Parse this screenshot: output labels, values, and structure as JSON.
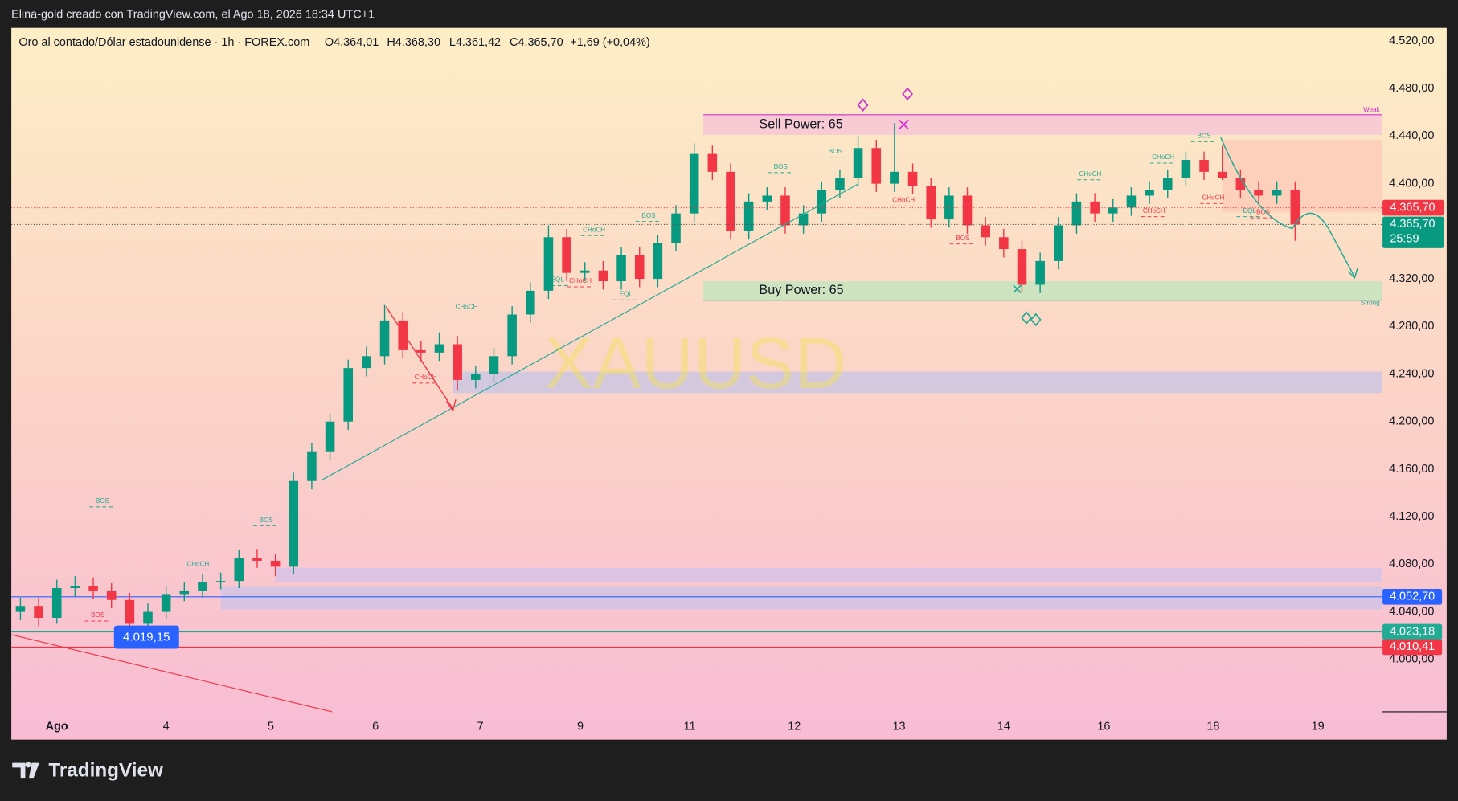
{
  "chart_data": {
    "type": "candlestick",
    "header": "Elina-gold creado con TradingView.com, el Ago 18, 2026 18:34 UTC+1",
    "symbol": "Oro al contado/Dólar estadounidense · 1h · FOREX.com",
    "ohlc_legend": [
      "O4.364,01",
      "H4.368,30",
      "L4.361,42",
      "C4.365,70",
      "+1,69 (+0,04%)"
    ],
    "watermark": "XAUUSD",
    "brand": "TradingView",
    "up_color": "#089981",
    "down_color": "#f23645",
    "xlim": [
      0,
      301
    ],
    "ylim": [
      3956,
      4531
    ],
    "xticks": [
      {
        "value": 10,
        "label": "Ago"
      },
      {
        "value": 34,
        "label": "4"
      },
      {
        "value": 57,
        "label": "5"
      },
      {
        "value": 80,
        "label": "6"
      },
      {
        "value": 103,
        "label": "7"
      },
      {
        "value": 125,
        "label": "9"
      },
      {
        "value": 149,
        "label": "11"
      },
      {
        "value": 172,
        "label": "12"
      },
      {
        "value": 195,
        "label": "13"
      },
      {
        "value": 218,
        "label": "14"
      },
      {
        "value": 240,
        "label": "16"
      },
      {
        "value": 264,
        "label": "18"
      },
      {
        "value": 287,
        "label": "19"
      }
    ],
    "yticks": [
      {
        "value": 4520,
        "label": "4.520,00"
      },
      {
        "value": 4480,
        "label": "4.480,00"
      },
      {
        "value": 4440,
        "label": "4.440,00"
      },
      {
        "value": 4400,
        "label": "4.400,00"
      },
      {
        "value": 4320,
        "label": "4.320,00"
      },
      {
        "value": 4280,
        "label": "4.280,00"
      },
      {
        "value": 4240,
        "label": "4.240,00"
      },
      {
        "value": 4200,
        "label": "4.200,00"
      },
      {
        "value": 4160,
        "label": "4.160,00"
      },
      {
        "value": 4120,
        "label": "4.120,00"
      },
      {
        "value": 4080,
        "label": "4.080,00"
      },
      {
        "value": 4040,
        "label": "4.040,00"
      },
      {
        "value": 4000,
        "label": "4.000,00"
      }
    ],
    "x": [
      2,
      6,
      10,
      14,
      18,
      22,
      26,
      30,
      34,
      38,
      42,
      46,
      50,
      54,
      58,
      62,
      66,
      70,
      74,
      78,
      82,
      86,
      90,
      94,
      98,
      102,
      106,
      110,
      114,
      118,
      122,
      126,
      130,
      134,
      138,
      142,
      146,
      150,
      154,
      158,
      162,
      166,
      170,
      174,
      178,
      182,
      186,
      190,
      194,
      198,
      202,
      206,
      210,
      214,
      218,
      222,
      226,
      230,
      234,
      238,
      242,
      246,
      250,
      254,
      258,
      262,
      266,
      270,
      274,
      278,
      282
    ],
    "ohlc": [
      [
        4040,
        4052,
        4033,
        4045
      ],
      [
        4045,
        4052,
        4028,
        4035
      ],
      [
        4035,
        4067,
        4030,
        4060
      ],
      [
        4060,
        4070,
        4053,
        4062
      ],
      [
        4062,
        4069,
        4051,
        4058
      ],
      [
        4058,
        4064,
        4043,
        4050
      ],
      [
        4050,
        4056,
        4023,
        4030
      ],
      [
        4030,
        4047,
        4024,
        4040
      ],
      [
        4040,
        4062,
        4034,
        4055
      ],
      [
        4055,
        4065,
        4049,
        4058
      ],
      [
        4058,
        4072,
        4052,
        4065
      ],
      [
        4065,
        4073,
        4059,
        4066
      ],
      [
        4066,
        4092,
        4060,
        4085
      ],
      [
        4085,
        4093,
        4077,
        4083
      ],
      [
        4083,
        4089,
        4070,
        4078
      ],
      [
        4078,
        4157,
        4072,
        4150
      ],
      [
        4150,
        4182,
        4143,
        4175
      ],
      [
        4175,
        4207,
        4168,
        4200
      ],
      [
        4200,
        4252,
        4193,
        4245
      ],
      [
        4245,
        4263,
        4238,
        4255
      ],
      [
        4255,
        4298,
        4248,
        4285
      ],
      [
        4285,
        4292,
        4253,
        4260
      ],
      [
        4260,
        4268,
        4250,
        4258
      ],
      [
        4258,
        4275,
        4251,
        4265
      ],
      [
        4265,
        4272,
        4226,
        4235
      ],
      [
        4235,
        4247,
        4228,
        4240
      ],
      [
        4240,
        4262,
        4233,
        4255
      ],
      [
        4255,
        4297,
        4248,
        4290
      ],
      [
        4290,
        4317,
        4283,
        4310
      ],
      [
        4310,
        4365,
        4303,
        4355
      ],
      [
        4355,
        4362,
        4318,
        4325
      ],
      [
        4325,
        4334,
        4318,
        4327
      ],
      [
        4327,
        4335,
        4311,
        4318
      ],
      [
        4318,
        4347,
        4311,
        4340
      ],
      [
        4340,
        4347,
        4313,
        4320
      ],
      [
        4320,
        4357,
        4313,
        4350
      ],
      [
        4350,
        4382,
        4343,
        4375
      ],
      [
        4375,
        4434,
        4368,
        4425
      ],
      [
        4425,
        4432,
        4403,
        4410
      ],
      [
        4410,
        4417,
        4353,
        4360
      ],
      [
        4360,
        4392,
        4353,
        4385
      ],
      [
        4385,
        4397,
        4378,
        4390
      ],
      [
        4390,
        4397,
        4358,
        4365
      ],
      [
        4365,
        4382,
        4358,
        4375
      ],
      [
        4375,
        4402,
        4368,
        4395
      ],
      [
        4395,
        4412,
        4388,
        4405
      ],
      [
        4405,
        4440,
        4398,
        4430
      ],
      [
        4430,
        4437,
        4393,
        4400
      ],
      [
        4400,
        4451,
        4393,
        4410
      ],
      [
        4410,
        4417,
        4391,
        4398
      ],
      [
        4398,
        4405,
        4363,
        4370
      ],
      [
        4370,
        4397,
        4363,
        4390
      ],
      [
        4390,
        4397,
        4358,
        4365
      ],
      [
        4365,
        4372,
        4348,
        4355
      ],
      [
        4355,
        4362,
        4338,
        4345
      ],
      [
        4345,
        4352,
        4308,
        4315
      ],
      [
        4315,
        4342,
        4308,
        4335
      ],
      [
        4335,
        4372,
        4328,
        4365
      ],
      [
        4365,
        4392,
        4358,
        4385
      ],
      [
        4385,
        4392,
        4368,
        4375
      ],
      [
        4375,
        4387,
        4368,
        4380
      ],
      [
        4380,
        4397,
        4373,
        4390
      ],
      [
        4390,
        4402,
        4383,
        4395
      ],
      [
        4395,
        4412,
        4388,
        4405
      ],
      [
        4405,
        4427,
        4398,
        4420
      ],
      [
        4420,
        4427,
        4403,
        4410
      ],
      [
        4410,
        4432,
        4403,
        4405
      ],
      [
        4405,
        4412,
        4388,
        4395
      ],
      [
        4395,
        4402,
        4383,
        4390
      ],
      [
        4390,
        4402,
        4383,
        4395
      ],
      [
        4395,
        4402,
        4352,
        4365.7
      ]
    ],
    "zones": [
      {
        "x0": 152,
        "x1": 301,
        "top": 4458,
        "bottom": 4441,
        "color": "#f7c6d6",
        "label": "Sell Power: 65",
        "edge_label": "Weak",
        "edge_color": "#d02fd0"
      },
      {
        "x0": 152,
        "x1": 301,
        "top": 4318,
        "bottom": 4302,
        "color": "#c6e5bf",
        "label": "Buy Power: 65",
        "edge_label": "Strong",
        "edge_color": "#22ab94"
      },
      {
        "x0": 266,
        "x1": 301,
        "top": 4437,
        "bottom": 4376,
        "color": "#fbcdb8"
      },
      {
        "x0": 97,
        "x1": 301,
        "top": 4242,
        "bottom": 4224,
        "color": "#cdc5e3"
      },
      {
        "x0": 58,
        "x1": 301,
        "top": 4077,
        "bottom": 4065,
        "color": "#d7c2e6"
      },
      {
        "x0": 46,
        "x1": 301,
        "top": 4061,
        "bottom": 4042,
        "color": "#d1c3e6"
      }
    ],
    "price_lines": [
      {
        "value": 4052.7,
        "label": "4.052,70",
        "color": "#2962ff"
      },
      {
        "value": 4023.18,
        "label": "4.023,18",
        "color": "#22ab94"
      },
      {
        "value": 4010.41,
        "label": "4.010,41",
        "color": "#f23645"
      }
    ],
    "close_tag": {
      "value": 4365.7,
      "label": "4.365,70",
      "color": "#f23645"
    },
    "last_price": {
      "value": 4365.7,
      "label": "4.365,70",
      "countdown": "25:59",
      "color": "#089981"
    },
    "marker_label": {
      "x": 25,
      "value": 4019.15,
      "label": "4.019,15"
    },
    "structure_labels": [
      {
        "text": "BOS",
        "x": 20,
        "value": 4133,
        "color": "#22ab94"
      },
      {
        "text": "BOS",
        "x": 19,
        "value": 4037,
        "color": "#f23645"
      },
      {
        "text": "CHoCH",
        "x": 41,
        "value": 4080,
        "color": "#22ab94"
      },
      {
        "text": "BOS",
        "x": 56,
        "value": 4117,
        "color": "#22ab94"
      },
      {
        "text": "CHoCH",
        "x": 91,
        "value": 4237,
        "color": "#f23645"
      },
      {
        "text": "CHoCH",
        "x": 100,
        "value": 4296,
        "color": "#22ab94"
      },
      {
        "text": "CHoCH",
        "x": 128,
        "value": 4361,
        "color": "#22ab94"
      },
      {
        "text": "EQL",
        "x": 120,
        "value": 4319,
        "color": "#22ab94"
      },
      {
        "text": "CHoCH",
        "x": 125,
        "value": 4318,
        "color": "#f23645"
      },
      {
        "text": "EQL",
        "x": 135,
        "value": 4307,
        "color": "#22ab94"
      },
      {
        "text": "BOS",
        "x": 140,
        "value": 4373,
        "color": "#22ab94"
      },
      {
        "text": "BOS",
        "x": 169,
        "value": 4414,
        "color": "#22ab94"
      },
      {
        "text": "BOS",
        "x": 181,
        "value": 4427,
        "color": "#22ab94"
      },
      {
        "text": "CHoCH",
        "x": 196,
        "value": 4386,
        "color": "#f23645"
      },
      {
        "text": "BOS",
        "x": 209,
        "value": 4354,
        "color": "#f23645"
      },
      {
        "text": "CHoCH",
        "x": 237,
        "value": 4408,
        "color": "#22ab94"
      },
      {
        "text": "CHoCH",
        "x": 253,
        "value": 4422,
        "color": "#22ab94"
      },
      {
        "text": "CHoCH",
        "x": 251,
        "value": 4377,
        "color": "#f23645"
      },
      {
        "text": "BOS",
        "x": 262,
        "value": 4440,
        "color": "#22ab94"
      },
      {
        "text": "CHoCH",
        "x": 264,
        "value": 4388,
        "color": "#f23645"
      },
      {
        "text": "EQL",
        "x": 272,
        "value": 4377,
        "color": "#22ab94"
      },
      {
        "text": "BOS",
        "x": 275,
        "value": 4376,
        "color": "#f23645"
      }
    ]
  }
}
